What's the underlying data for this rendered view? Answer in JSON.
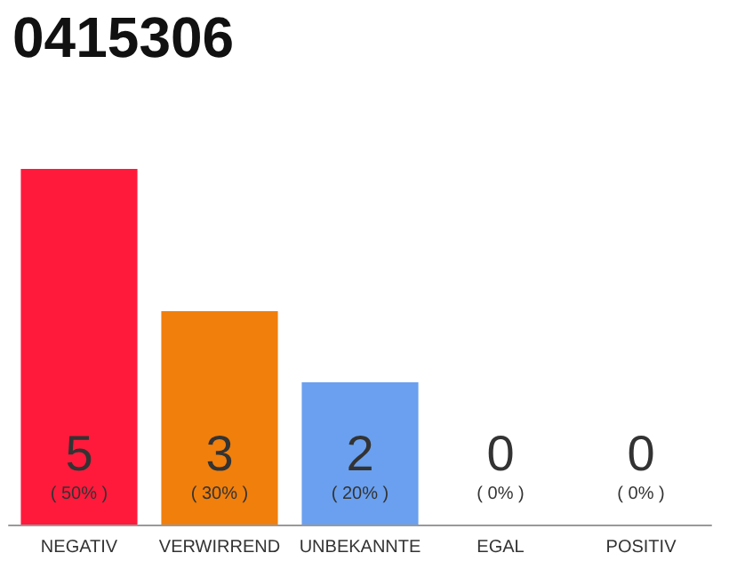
{
  "chart_data": {
    "type": "bar",
    "title": "0415306",
    "categories": [
      "NEGATIV",
      "VERWIRREND",
      "UNBEKANNTE",
      "EGAL",
      "POSITIV"
    ],
    "values": [
      50,
      30,
      20,
      0,
      0
    ],
    "colors": [
      "#ff1a3c",
      "#f07f0c",
      "#6aa0ef",
      "#cccccc",
      "#cccccc"
    ],
    "tick_labels": "x",
    "value_labels": [
      "5\n( 50% )",
      "3\n( 30% )",
      "2\n( 20% )",
      "0\n( 0% )",
      "0\n( 0% )"
    ]
  }
}
